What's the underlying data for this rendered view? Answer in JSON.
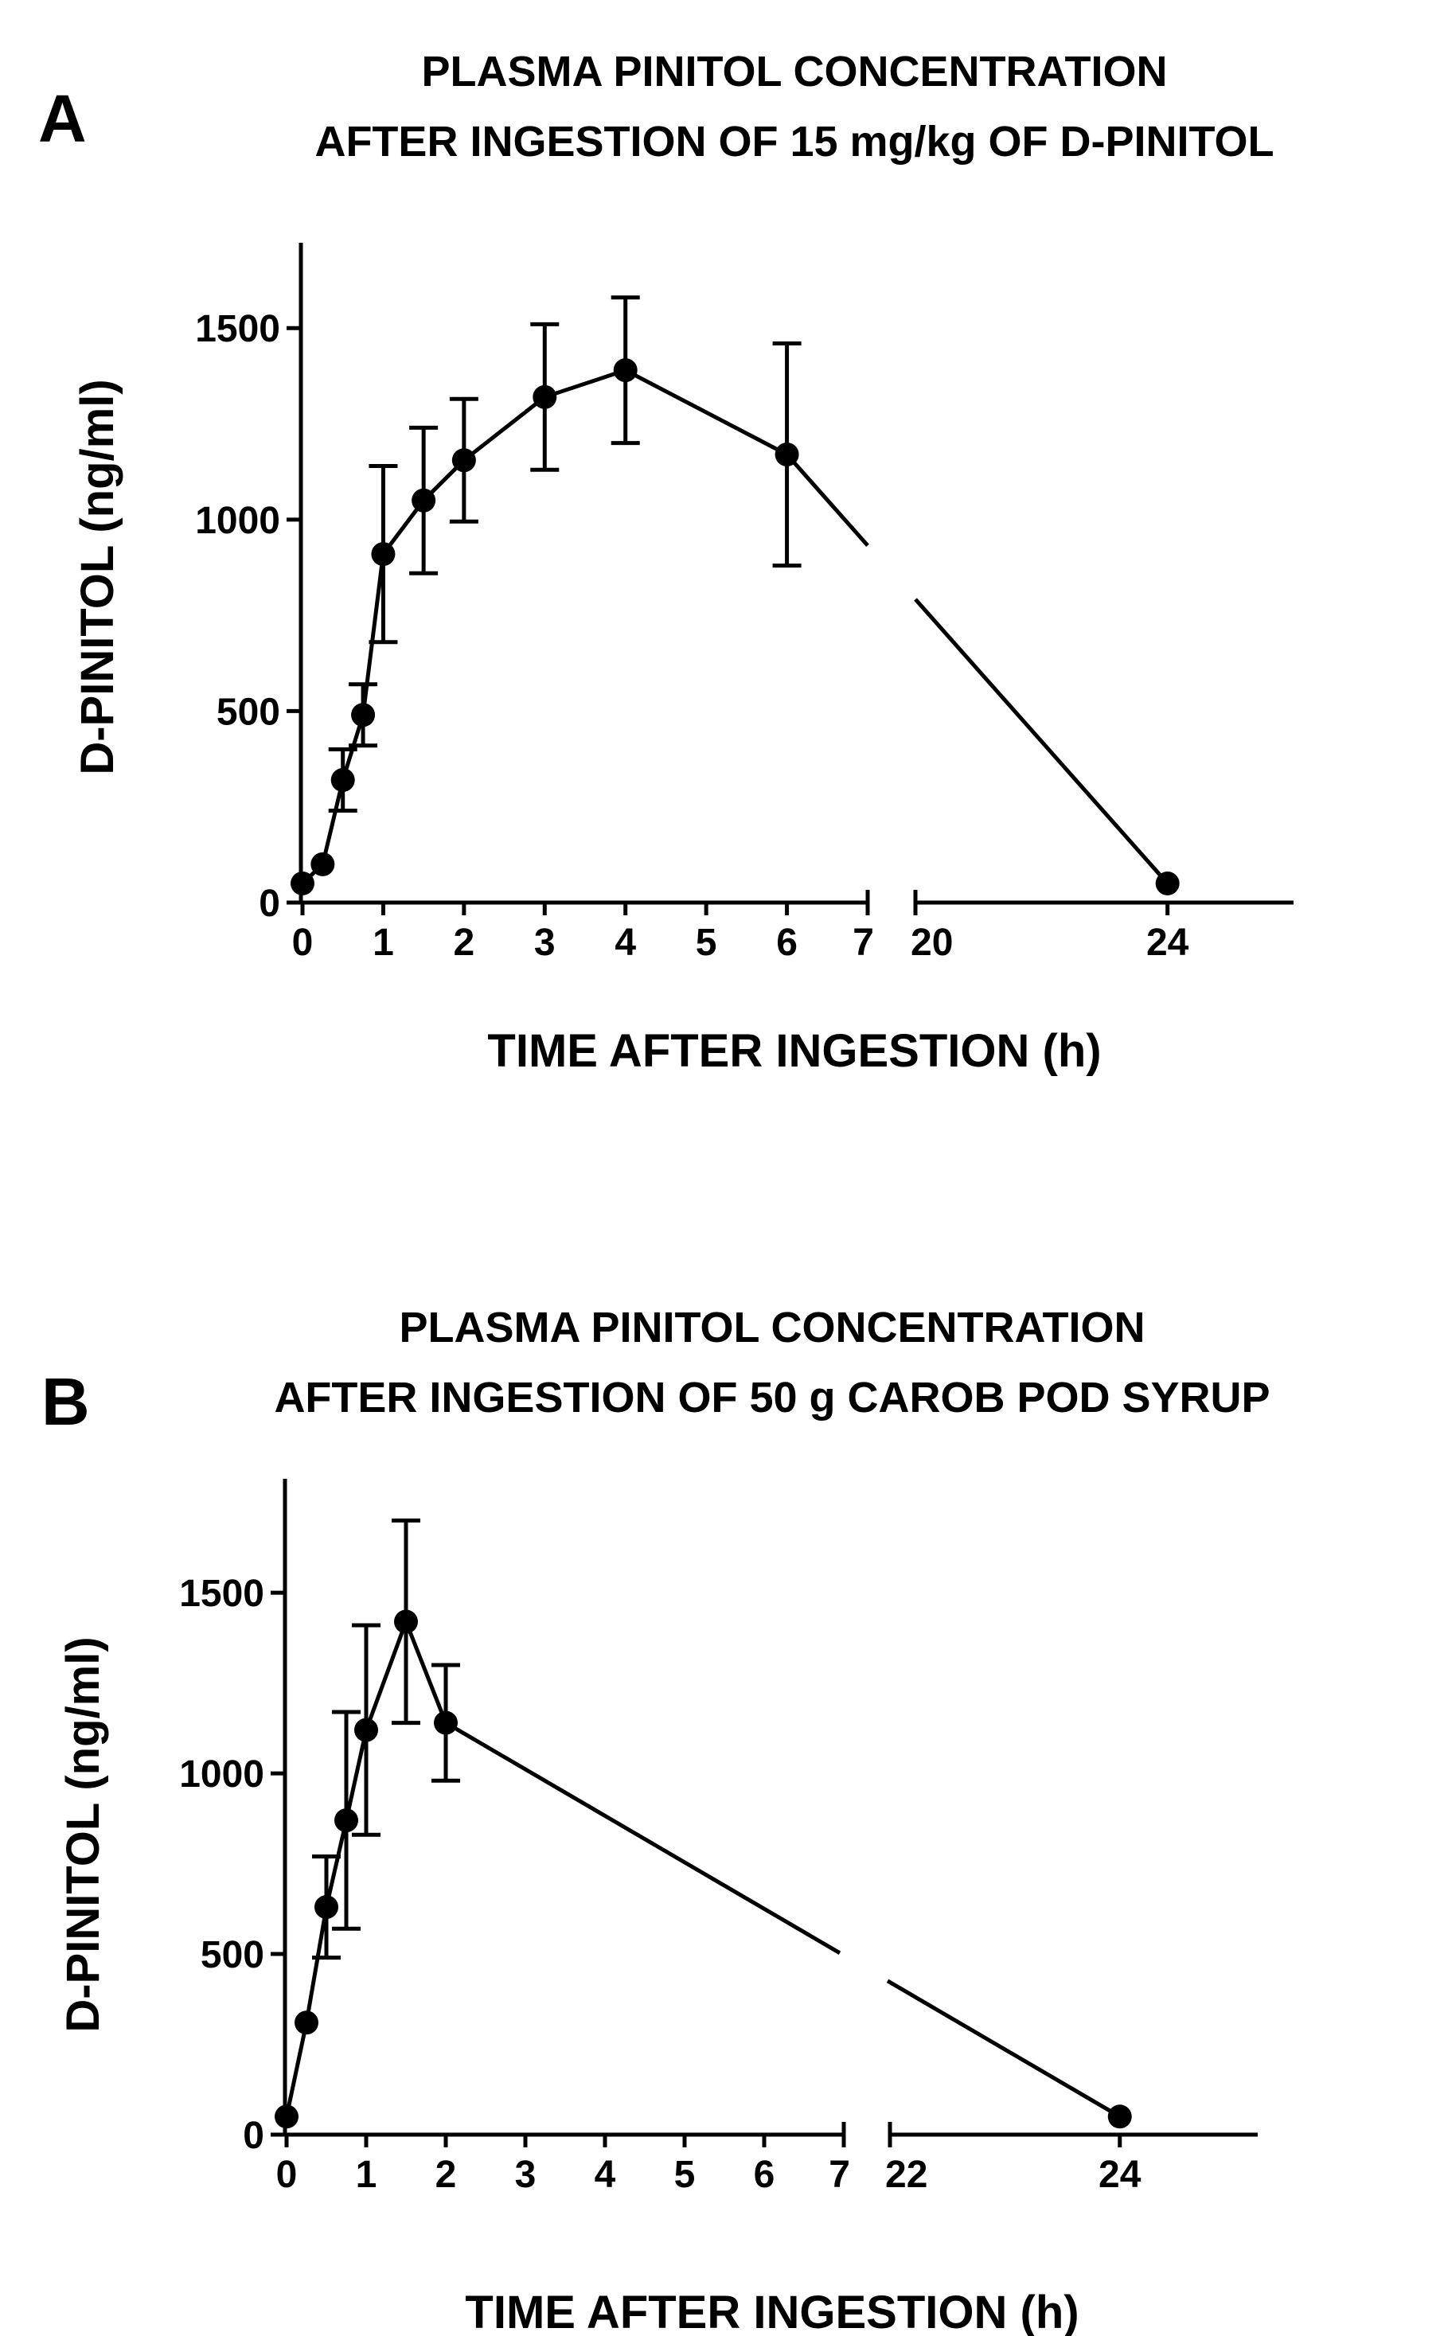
{
  "chart_data": [
    {
      "panel": "A",
      "type": "line",
      "title_lines": [
        "PLASMA PINITOL CONCENTRATION",
        "AFTER INGESTION OF 15 mg/kg OF D-PINITOL"
      ],
      "xlabel": "TIME AFTER INGESTION (h)",
      "ylabel": "D-PINITOL (ng/ml)",
      "ylim": [
        0,
        1700
      ],
      "yticks": [
        0,
        500,
        1000,
        1500
      ],
      "x_segments": [
        {
          "range": [
            0,
            7
          ],
          "ticks": [
            0,
            1,
            2,
            3,
            4,
            5,
            6,
            7
          ]
        },
        {
          "range": [
            20,
            26
          ],
          "ticks": [
            20,
            24
          ]
        }
      ],
      "series": [
        {
          "name": "D-Pinitol",
          "points": [
            {
              "x": 0,
              "y": 50
            },
            {
              "x": 0.25,
              "y": 100
            },
            {
              "x": 0.5,
              "y": 320,
              "err": 80
            },
            {
              "x": 0.75,
              "y": 490,
              "err": 80
            },
            {
              "x": 1,
              "y": 910,
              "err": 230
            },
            {
              "x": 1.5,
              "y": 1050,
              "err": 190
            },
            {
              "x": 2,
              "y": 1155,
              "err": 160
            },
            {
              "x": 3,
              "y": 1320,
              "err": 190
            },
            {
              "x": 4,
              "y": 1390,
              "err": 190
            },
            {
              "x": 6,
              "y": 1170,
              "err": 290
            },
            {
              "x": 24,
              "y": 50
            }
          ]
        }
      ]
    },
    {
      "panel": "B",
      "type": "line",
      "title_lines": [
        "PLASMA PINITOL CONCENTRATION",
        "AFTER INGESTION OF 50 g CAROB POD SYRUP"
      ],
      "xlabel": "TIME AFTER INGESTION (h)",
      "ylabel": "D-PINITOL (ng/ml)",
      "ylim": [
        0,
        1800
      ],
      "yticks": [
        0,
        500,
        1000,
        1500
      ],
      "x_segments": [
        {
          "range": [
            0,
            7
          ],
          "ticks": [
            0,
            1,
            2,
            3,
            4,
            5,
            6,
            7
          ]
        },
        {
          "range": [
            22,
            25.2
          ],
          "ticks": [
            22,
            24
          ]
        }
      ],
      "series": [
        {
          "name": "D-Pinitol",
          "points": [
            {
              "x": 0,
              "y": 50
            },
            {
              "x": 0.25,
              "y": 310
            },
            {
              "x": 0.5,
              "y": 630,
              "err": 140
            },
            {
              "x": 0.75,
              "y": 870,
              "err": 300
            },
            {
              "x": 1,
              "y": 1120,
              "err": 290
            },
            {
              "x": 1.5,
              "y": 1420,
              "err": 280
            },
            {
              "x": 2,
              "y": 1140,
              "err": 160
            },
            {
              "x": 24,
              "y": 50
            }
          ]
        }
      ]
    }
  ]
}
